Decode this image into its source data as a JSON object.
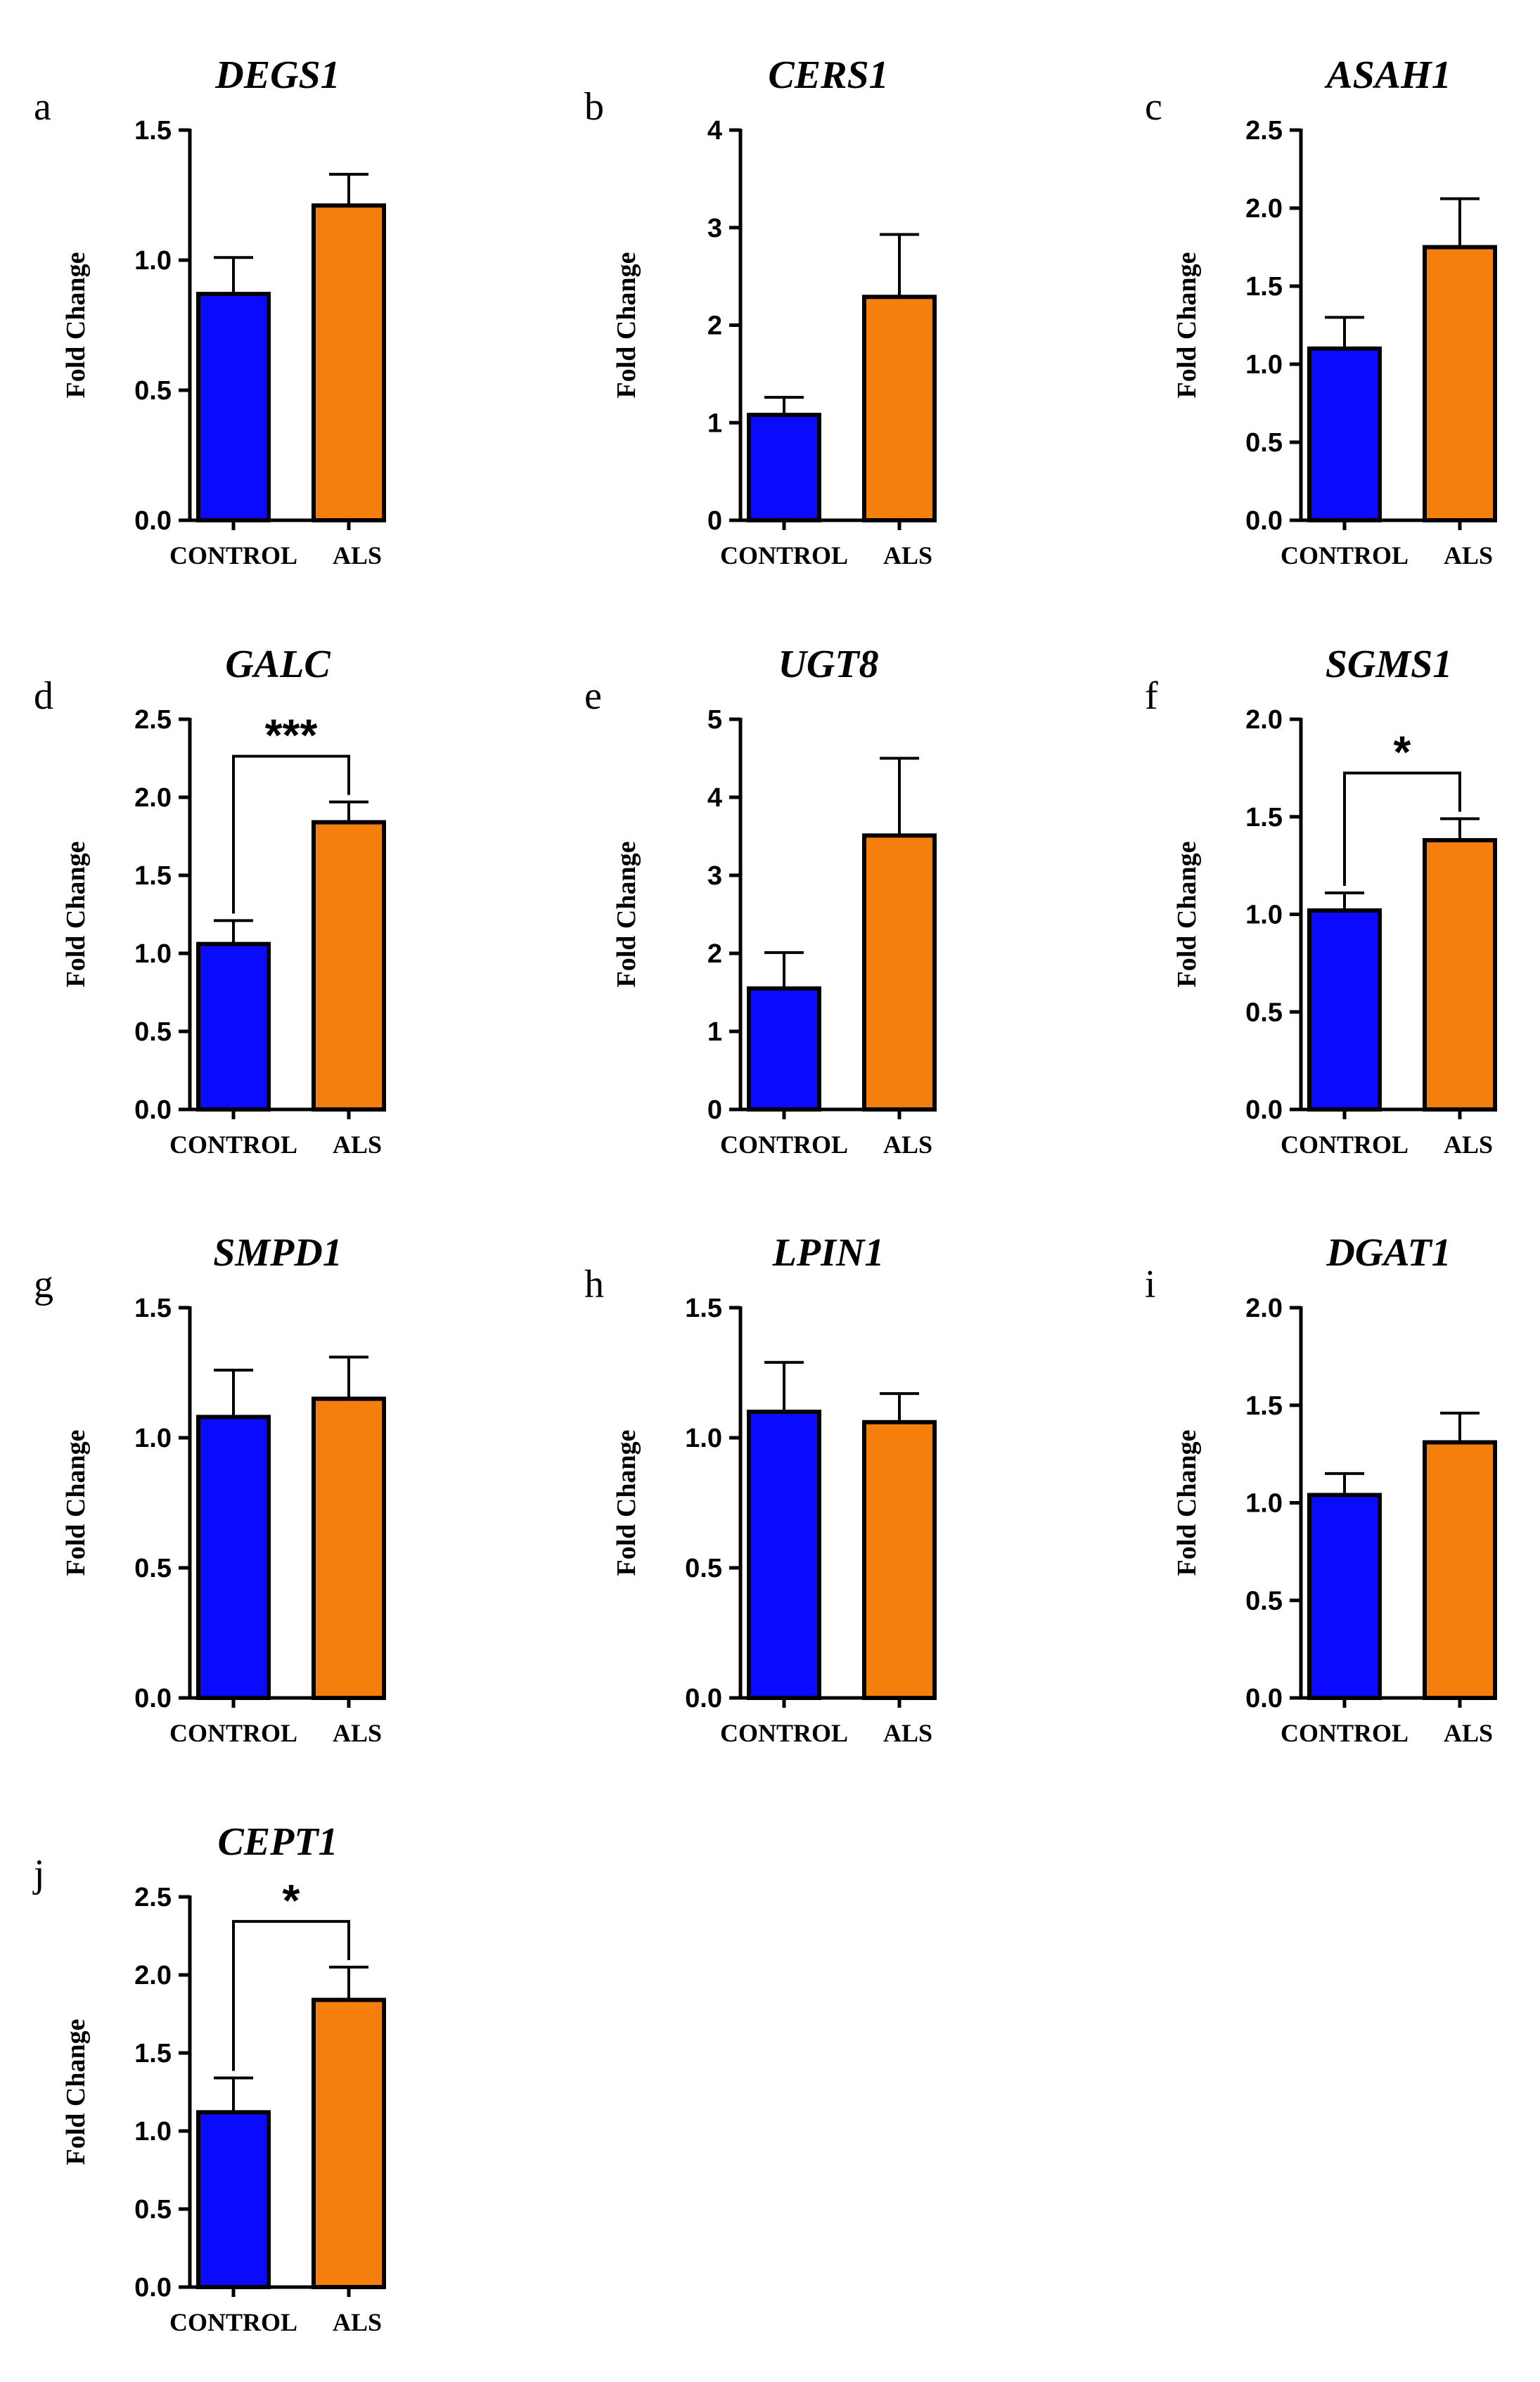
{
  "figure": {
    "ylabel": "Fold Change",
    "colors": {
      "control": "#0a0aff",
      "als": "#f57f0c"
    }
  },
  "chart_data": [
    {
      "type": "bar",
      "panel": "a",
      "title": "DEGS1",
      "ylabel": "Fold Change",
      "categories": [
        "CONTROL",
        "ALS"
      ],
      "values": [
        0.87,
        1.21
      ],
      "errors": [
        0.14,
        0.12
      ],
      "ylim": [
        0,
        1.5
      ],
      "yticks": [
        "0.0",
        "0.5",
        "1.0",
        "1.5"
      ],
      "significance": ""
    },
    {
      "type": "bar",
      "panel": "b",
      "title": "CERS1",
      "ylabel": "Fold Change",
      "categories": [
        "CONTROL",
        "ALS"
      ],
      "values": [
        1.08,
        2.29
      ],
      "errors": [
        0.18,
        0.64
      ],
      "ylim": [
        0,
        4
      ],
      "yticks": [
        "0",
        "1",
        "2",
        "3",
        "4"
      ],
      "significance": ""
    },
    {
      "type": "bar",
      "panel": "c",
      "title": "ASAH1",
      "ylabel": "Fold Change",
      "categories": [
        "CONTROL",
        "ALS"
      ],
      "values": [
        1.1,
        1.75
      ],
      "errors": [
        0.2,
        0.31
      ],
      "ylim": [
        0,
        2.5
      ],
      "yticks": [
        "0.0",
        "0.5",
        "1.0",
        "1.5",
        "2.0",
        "2.5"
      ],
      "significance": ""
    },
    {
      "type": "bar",
      "panel": "d",
      "title": "GALC",
      "ylabel": "Fold Change",
      "categories": [
        "CONTROL",
        "ALS"
      ],
      "values": [
        1.06,
        1.84
      ],
      "errors": [
        0.15,
        0.13
      ],
      "ylim": [
        0,
        2.5
      ],
      "yticks": [
        "0.0",
        "0.5",
        "1.0",
        "1.5",
        "2.0",
        "2.5"
      ],
      "significance": "***"
    },
    {
      "type": "bar",
      "panel": "e",
      "title": "UGT8",
      "ylabel": "Fold Change",
      "categories": [
        "CONTROL",
        "ALS"
      ],
      "values": [
        1.55,
        3.51
      ],
      "errors": [
        0.46,
        0.99
      ],
      "ylim": [
        0,
        5
      ],
      "yticks": [
        "0",
        "1",
        "2",
        "3",
        "4",
        "5"
      ],
      "significance": ""
    },
    {
      "type": "bar",
      "panel": "f",
      "title": "SGMS1",
      "ylabel": "Fold Change",
      "categories": [
        "CONTROL",
        "ALS"
      ],
      "values": [
        1.02,
        1.38
      ],
      "errors": [
        0.09,
        0.11
      ],
      "ylim": [
        0,
        2.0
      ],
      "yticks": [
        "0.0",
        "0.5",
        "1.0",
        "1.5",
        "2.0"
      ],
      "significance": "*"
    },
    {
      "type": "bar",
      "panel": "g",
      "title": "SMPD1",
      "ylabel": "Fold Change",
      "categories": [
        "CONTROL",
        "ALS"
      ],
      "values": [
        1.08,
        1.15
      ],
      "errors": [
        0.18,
        0.16
      ],
      "ylim": [
        0,
        1.5
      ],
      "yticks": [
        "0.0",
        "0.5",
        "1.0",
        "1.5"
      ],
      "significance": ""
    },
    {
      "type": "bar",
      "panel": "h",
      "title": "LPIN1",
      "ylabel": "Fold Change",
      "categories": [
        "CONTROL",
        "ALS"
      ],
      "values": [
        1.1,
        1.06
      ],
      "errors": [
        0.19,
        0.11
      ],
      "ylim": [
        0,
        1.5
      ],
      "yticks": [
        "0.0",
        "0.5",
        "1.0",
        "1.5"
      ],
      "significance": ""
    },
    {
      "type": "bar",
      "panel": "i",
      "title": "DGAT1",
      "ylabel": "Fold Change",
      "categories": [
        "CONTROL",
        "ALS"
      ],
      "values": [
        1.04,
        1.31
      ],
      "errors": [
        0.11,
        0.15
      ],
      "ylim": [
        0,
        2.0
      ],
      "yticks": [
        "0.0",
        "0.5",
        "1.0",
        "1.5",
        "2.0"
      ],
      "significance": ""
    },
    {
      "type": "bar",
      "panel": "j",
      "title": "CEPT1",
      "ylabel": "Fold Change",
      "categories": [
        "CONTROL",
        "ALS"
      ],
      "values": [
        1.12,
        1.84
      ],
      "errors": [
        0.22,
        0.21
      ],
      "ylim": [
        0,
        2.5
      ],
      "yticks": [
        "0.0",
        "0.5",
        "1.0",
        "1.5",
        "2.0",
        "2.5"
      ],
      "significance": "*"
    }
  ]
}
